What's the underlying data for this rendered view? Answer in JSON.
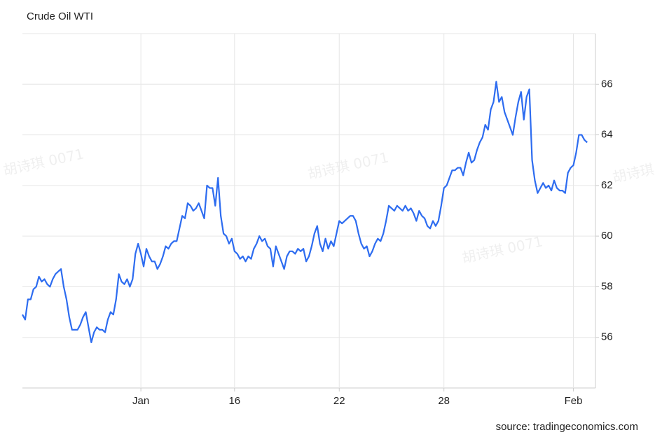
{
  "chart_data": {
    "type": "line",
    "title": "Crude Oil WTI",
    "source": "source: tradingeconomics.com",
    "watermark": "胡诗琪 0071",
    "series": [
      {
        "name": "Crude Oil WTI",
        "color": "#2d6cf0",
        "values": [
          56.9,
          56.7,
          57.5,
          57.5,
          57.9,
          58.0,
          58.4,
          58.2,
          58.3,
          58.1,
          58.0,
          58.3,
          58.5,
          58.6,
          58.7,
          58.0,
          57.5,
          56.8,
          56.3,
          56.3,
          56.3,
          56.5,
          56.8,
          57.0,
          56.4,
          55.8,
          56.2,
          56.4,
          56.3,
          56.3,
          56.2,
          56.7,
          57.0,
          56.9,
          57.5,
          58.5,
          58.2,
          58.1,
          58.3,
          58.0,
          58.3,
          59.3,
          59.7,
          59.3,
          58.8,
          59.5,
          59.2,
          59.0,
          59.0,
          58.7,
          58.9,
          59.2,
          59.6,
          59.5,
          59.7,
          59.8,
          59.8,
          60.3,
          60.8,
          60.7,
          61.3,
          61.2,
          61.0,
          61.1,
          61.3,
          61.0,
          60.7,
          62.0,
          61.9,
          61.9,
          61.2,
          62.3,
          60.8,
          60.1,
          60.0,
          59.7,
          59.9,
          59.4,
          59.3,
          59.1,
          59.2,
          59.0,
          59.2,
          59.1,
          59.5,
          59.7,
          60.0,
          59.8,
          59.9,
          59.6,
          59.5,
          58.8,
          59.6,
          59.3,
          59.0,
          58.7,
          59.2,
          59.4,
          59.4,
          59.3,
          59.5,
          59.4,
          59.5,
          59.0,
          59.2,
          59.6,
          60.1,
          60.4,
          59.7,
          59.4,
          59.9,
          59.5,
          59.8,
          59.6,
          60.1,
          60.6,
          60.5,
          60.6,
          60.7,
          60.8,
          60.8,
          60.6,
          60.1,
          59.7,
          59.5,
          59.6,
          59.2,
          59.4,
          59.7,
          59.9,
          59.8,
          60.1,
          60.6,
          61.2,
          61.1,
          61.0,
          61.2,
          61.1,
          61.0,
          61.2,
          61.0,
          61.1,
          60.9,
          60.6,
          61.0,
          60.8,
          60.7,
          60.4,
          60.3,
          60.6,
          60.4,
          60.6,
          61.2,
          61.9,
          62.0,
          62.3,
          62.6,
          62.6,
          62.7,
          62.7,
          62.4,
          62.9,
          63.3,
          62.9,
          63.0,
          63.4,
          63.7,
          63.9,
          64.4,
          64.2,
          65.0,
          65.3,
          66.1,
          65.3,
          65.5,
          64.9,
          64.6,
          64.3,
          64.0,
          64.7,
          65.3,
          65.7,
          64.6,
          65.5,
          65.8,
          63.0,
          62.2,
          61.7,
          61.9,
          62.1,
          61.9,
          62.0,
          61.8,
          62.2,
          61.9,
          61.8,
          61.8,
          61.7,
          62.5,
          62.7,
          62.8,
          63.3,
          64.0,
          64.0,
          63.8,
          63.7
        ]
      }
    ],
    "xlim": [
      0,
      208
    ],
    "xticks": [
      {
        "value": 43,
        "label": "Jan"
      },
      {
        "value": 77,
        "label": "16"
      },
      {
        "value": 115,
        "label": "22"
      },
      {
        "value": 153,
        "label": "28"
      },
      {
        "value": 200,
        "label": "Feb"
      }
    ],
    "ylim": [
      54,
      68
    ],
    "yticks": [
      56,
      58,
      60,
      62,
      64,
      66
    ],
    "grid": true
  }
}
